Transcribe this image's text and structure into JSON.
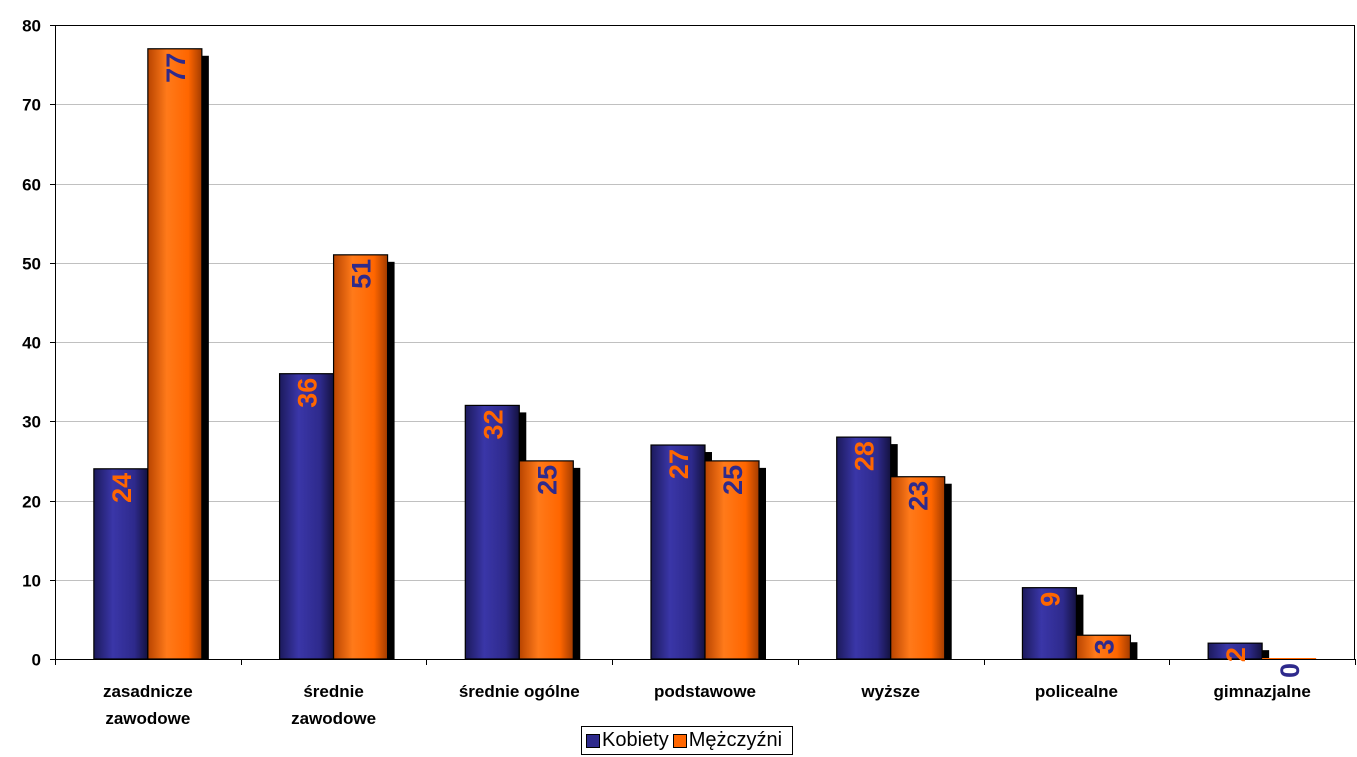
{
  "chart_data": {
    "type": "bar",
    "categories": [
      [
        "zasadnicze",
        "zawodowe"
      ],
      [
        "średnie",
        "zawodowe"
      ],
      [
        "średnie ogólne"
      ],
      [
        "podstawowe"
      ],
      [
        "wyższe"
      ],
      [
        "policealne"
      ],
      [
        "gimnazjalne"
      ]
    ],
    "series": [
      {
        "name": "Kobiety",
        "values": [
          24,
          36,
          32,
          27,
          28,
          9,
          2
        ],
        "color": "#2E2A8C",
        "label_color": "#FF6600"
      },
      {
        "name": "Mężczyźni",
        "values": [
          77,
          51,
          25,
          25,
          23,
          3,
          0
        ],
        "color": "#FF6600",
        "label_color": "#2E2A8C"
      }
    ],
    "ylim": [
      0,
      80
    ],
    "yticks": [
      0,
      10,
      20,
      30,
      40,
      50,
      60,
      70,
      80
    ],
    "grid": true,
    "legend_position": "bottom-center",
    "data_labels": "rotated-inside-top"
  }
}
